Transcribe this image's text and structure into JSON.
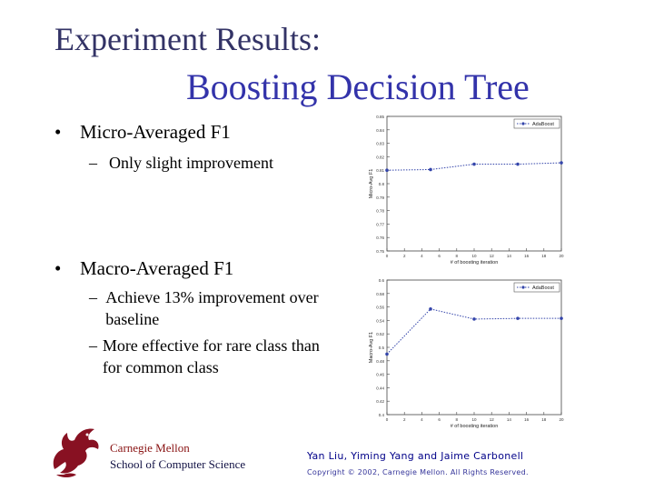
{
  "slide": {
    "title_line1": "Experiment Results:",
    "title_line2": "Boosting Decision Tree",
    "bullets": [
      {
        "text": "Micro-Averaged F1",
        "subs": [
          "Only slight improvement"
        ]
      },
      {
        "text": "Macro-Averaged F1",
        "subs": [
          "Achieve 13% improvement over baseline",
          "More effective for rare class than for common class"
        ]
      }
    ],
    "footer": {
      "org_line1": "Carnegie Mellon",
      "org_line2": "School of Computer Science",
      "authors": "Yan Liu, Yiming Yang and Jaime Carbonell",
      "copyright": "Copyright © 2002, Carnegie Mellon. All Rights Reserved."
    }
  },
  "chart_data": [
    {
      "type": "line",
      "title": "",
      "xlabel": "# of boosting iteration",
      "ylabel": "Micro-Avg F1",
      "xlim": [
        0,
        20
      ],
      "ylim": [
        0.75,
        0.85
      ],
      "xticks": [
        "0",
        "2",
        "4",
        "6",
        "8",
        "10",
        "12",
        "14",
        "16",
        "18",
        "20"
      ],
      "yticks": [
        "0.75",
        "0.76",
        "0.77",
        "0.78",
        "0.79",
        "0.8",
        "0.81",
        "0.82",
        "0.83",
        "0.84",
        "0.85"
      ],
      "legend_position": "top-right",
      "color": "#3344aa",
      "series": [
        {
          "name": "AdaBoost",
          "x": [
            0,
            5,
            10,
            15,
            20
          ],
          "y": [
            0.81,
            0.8105,
            0.8145,
            0.8145,
            0.8155
          ]
        }
      ]
    },
    {
      "type": "line",
      "title": "",
      "xlabel": "# of boosting iteration",
      "ylabel": "Macro-Avg F1",
      "xlim": [
        0,
        20
      ],
      "ylim": [
        0.4,
        0.6
      ],
      "xticks": [
        "0",
        "2",
        "4",
        "6",
        "8",
        "10",
        "12",
        "14",
        "16",
        "18",
        "20"
      ],
      "yticks": [
        "0.4",
        "0.42",
        "0.44",
        "0.46",
        "0.48",
        "0.5",
        "0.52",
        "0.54",
        "0.56",
        "0.58",
        "0.6"
      ],
      "legend_position": "top-right",
      "color": "#3344aa",
      "series": [
        {
          "name": "AdaBoost",
          "x": [
            0,
            5,
            10,
            15,
            20
          ],
          "y": [
            0.49,
            0.557,
            0.542,
            0.543,
            0.543
          ]
        }
      ]
    }
  ]
}
